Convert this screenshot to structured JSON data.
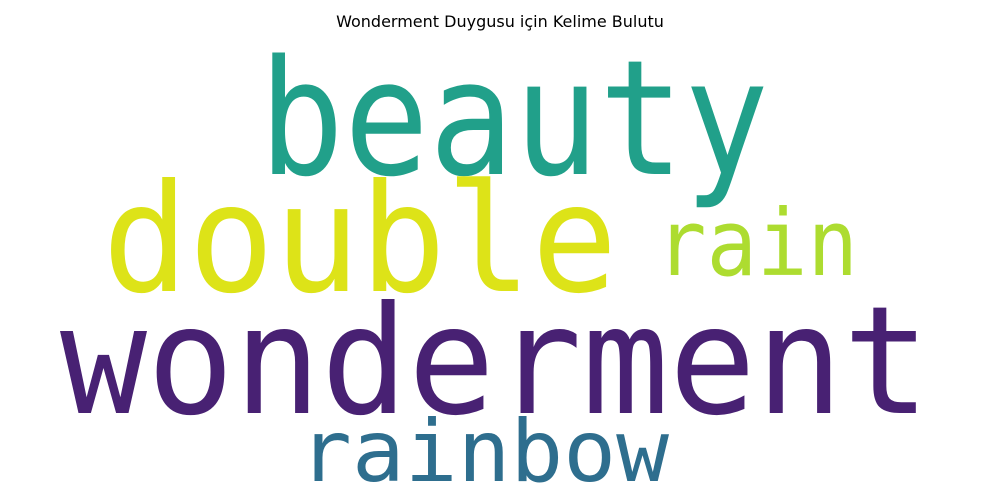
{
  "title": "Wonderment Duygusu için Kelime Bulutu",
  "words": [
    {
      "text": "beauty",
      "color": "#21a08a"
    },
    {
      "text": "double",
      "color": "#dde318"
    },
    {
      "text": "rain",
      "color": "#addc30"
    },
    {
      "text": "wonderment",
      "color": "#482173"
    },
    {
      "text": "rainbow",
      "color": "#2e6e8e"
    }
  ]
}
